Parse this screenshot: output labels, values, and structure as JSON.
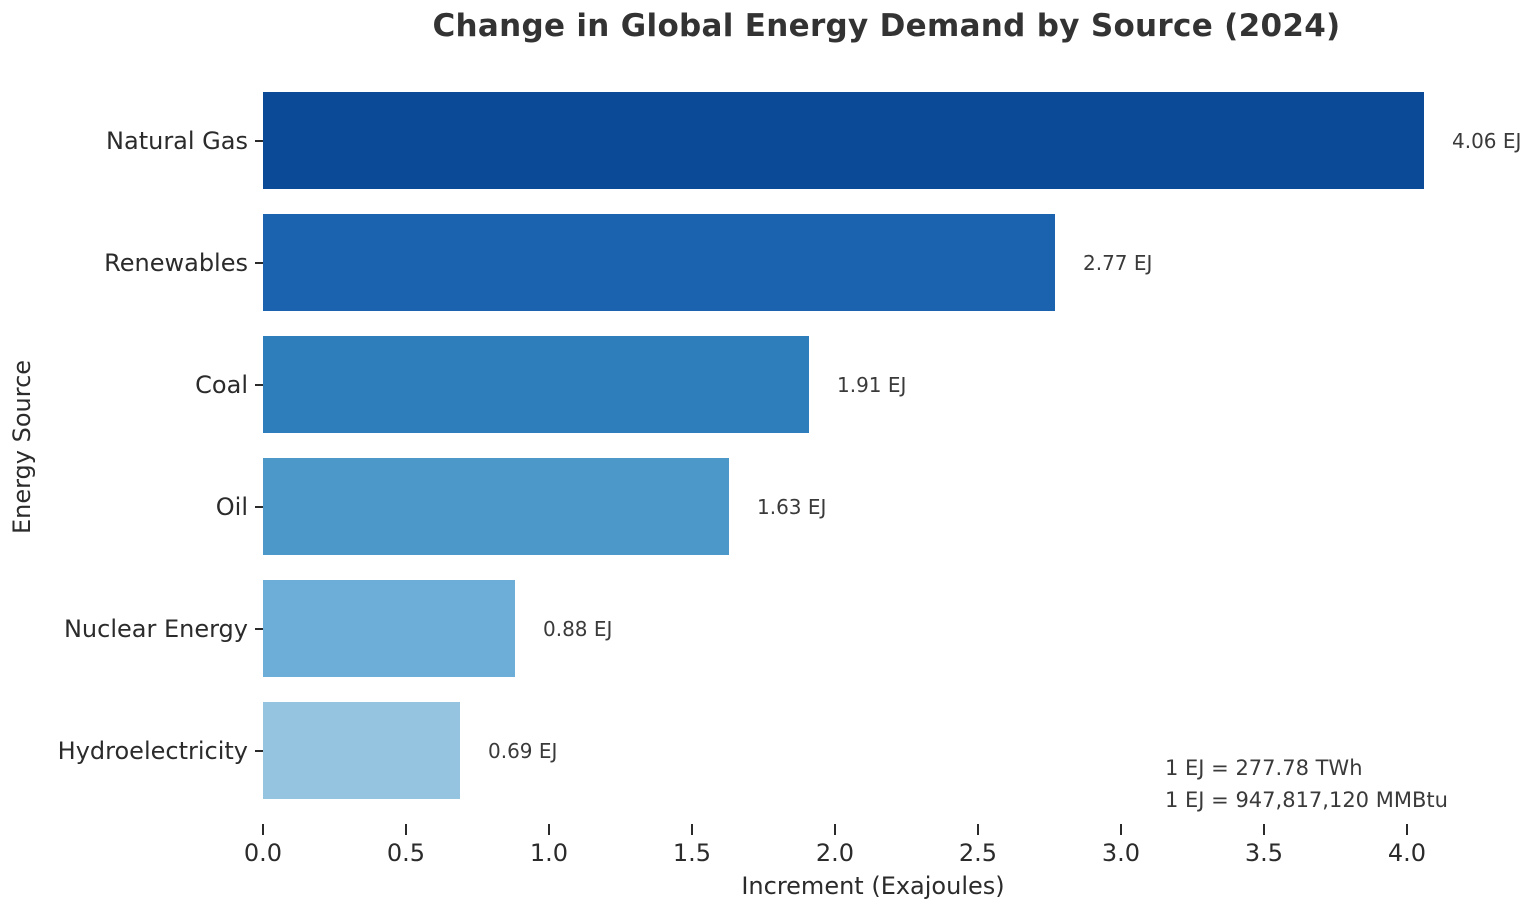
{
  "chart_data": {
    "type": "bar",
    "orientation": "horizontal",
    "title": "Change in Global Energy Demand by Source (2024)",
    "xlabel": "Increment (Exajoules)",
    "ylabel": "Energy Source",
    "categories": [
      "Natural Gas",
      "Renewables",
      "Coal",
      "Oil",
      "Nuclear Energy",
      "Hydroelectricity"
    ],
    "values": [
      4.06,
      2.77,
      1.91,
      1.63,
      0.88,
      0.69
    ],
    "value_labels": [
      "4.06 EJ",
      "2.77 EJ",
      "1.91 EJ",
      "1.63 EJ",
      "0.88 EJ",
      "0.69 EJ"
    ],
    "bar_colors": [
      "#0a4a96",
      "#1b63ae",
      "#2e7ebc",
      "#4c98c8",
      "#6caed8",
      "#94c4df"
    ],
    "x_ticks": [
      0.0,
      0.5,
      1.0,
      1.5,
      2.0,
      2.5,
      3.0,
      3.5,
      4.0
    ],
    "x_tick_labels": [
      "0.0",
      "0.5",
      "1.0",
      "1.5",
      "2.0",
      "2.5",
      "3.0",
      "3.5",
      "4.0"
    ],
    "xlim": [
      0.0,
      4.3
    ],
    "grid": false,
    "legend": null,
    "annotations": [
      "1 EJ = 277.78 TWh",
      "1 EJ = 947,817,120 MMBtu"
    ],
    "background": "#ffffff",
    "text_color": "#2b2b2b"
  }
}
